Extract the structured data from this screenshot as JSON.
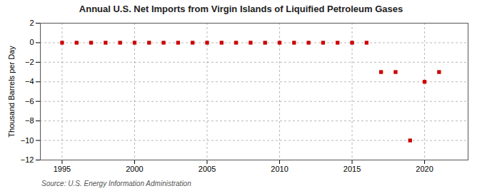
{
  "chart_data": {
    "type": "scatter",
    "title": "Annual U.S. Net Imports from Virgin Islands of Liquified Petroleum Gases",
    "ylabel": "Thousand Barrels per Day",
    "annotations": [
      "Source: U.S. Energy Information Administration"
    ],
    "x": [
      1995,
      1996,
      1997,
      1998,
      1999,
      2000,
      2001,
      2002,
      2003,
      2004,
      2005,
      2006,
      2007,
      2008,
      2009,
      2010,
      2011,
      2012,
      2013,
      2014,
      2015,
      2016,
      2017,
      2018,
      2019,
      2020,
      2021
    ],
    "values": [
      0,
      0,
      0,
      0,
      0,
      0,
      0,
      0,
      0,
      0,
      0,
      0,
      0,
      0,
      0,
      0,
      0,
      0,
      0,
      0,
      0,
      0,
      -3,
      -3,
      -10,
      -4,
      -3
    ],
    "xlim": [
      1993.5,
      2023.0
    ],
    "ylim": [
      -12,
      2
    ],
    "xticks": [
      1995,
      2000,
      2005,
      2010,
      2015,
      2020
    ],
    "yticks": [
      2,
      0,
      -2,
      -4,
      -6,
      -8,
      -10,
      -12
    ],
    "color": "#cc0000",
    "marker": "square",
    "grid": true
  }
}
